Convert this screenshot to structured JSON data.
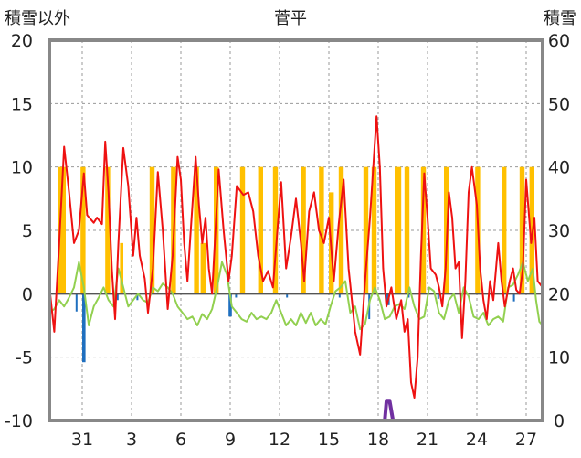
{
  "chart_data": {
    "type": "line",
    "title": "菅平",
    "ylabel_left": "積雪以外",
    "ylabel_right": "積雪",
    "ylim_left": [
      -10,
      20
    ],
    "ylim_right": [
      0,
      60
    ],
    "yticks_left": [
      20,
      15,
      10,
      5,
      0,
      -5,
      -10
    ],
    "yticks_right": [
      60,
      50,
      40,
      30,
      20,
      10,
      0
    ],
    "x_range": [
      29.0,
      59.0
    ],
    "xticks": [
      {
        "day": 31,
        "label": "31"
      },
      {
        "day": 34,
        "label": "3"
      },
      {
        "day": 37,
        "label": "6"
      },
      {
        "day": 40,
        "label": "9"
      },
      {
        "day": 43,
        "label": "12"
      },
      {
        "day": 46,
        "label": "15"
      },
      {
        "day": 49,
        "label": "18"
      },
      {
        "day": 52,
        "label": "21"
      },
      {
        "day": 55,
        "label": "24"
      },
      {
        "day": 58,
        "label": "27"
      }
    ],
    "grid": true,
    "colors": {
      "sunshine": "#ffc000",
      "precipitation": "#1f6fbf",
      "temperature": "#ee1111",
      "dewpoint": "#92d050",
      "snow_depth": "#7030a0",
      "frame": "#888888",
      "zero_line": "#555555"
    },
    "sunshine_bars": [
      [
        29.5,
        30.0,
        10
      ],
      [
        30.9,
        31.2,
        10
      ],
      [
        32.4,
        32.7,
        10
      ],
      [
        33.3,
        33.5,
        4
      ],
      [
        35.1,
        35.4,
        10
      ],
      [
        36.4,
        36.7,
        10
      ],
      [
        37.8,
        38.1,
        10
      ],
      [
        38.2,
        38.5,
        4
      ],
      [
        39.0,
        39.3,
        10
      ],
      [
        40.6,
        40.9,
        10
      ],
      [
        41.7,
        42.0,
        10
      ],
      [
        42.6,
        42.9,
        10
      ],
      [
        44.3,
        44.6,
        10
      ],
      [
        45.4,
        45.7,
        10
      ],
      [
        46.0,
        46.3,
        8
      ],
      [
        46.6,
        46.9,
        10
      ],
      [
        48.1,
        48.4,
        10
      ],
      [
        48.6,
        48.9,
        10
      ],
      [
        50.0,
        50.4,
        10
      ],
      [
        50.6,
        50.9,
        10
      ],
      [
        51.6,
        51.9,
        10
      ],
      [
        53.0,
        53.3,
        10
      ],
      [
        54.9,
        55.2,
        10
      ],
      [
        56.5,
        56.8,
        10
      ],
      [
        57.6,
        57.9,
        10
      ],
      [
        58.2,
        58.5,
        10
      ]
    ],
    "precipitation_bars": [
      [
        30.6,
        30.7,
        -1.4
      ],
      [
        31.0,
        31.2,
        -5.4
      ],
      [
        33.1,
        33.2,
        -0.5
      ],
      [
        34.3,
        34.4,
        -0.5
      ],
      [
        39.9,
        40.1,
        -1.8
      ],
      [
        40.3,
        40.4,
        -0.3
      ],
      [
        43.4,
        43.5,
        -0.3
      ],
      [
        46.6,
        46.7,
        -0.3
      ],
      [
        48.4,
        48.5,
        -2.0
      ],
      [
        49.5,
        49.7,
        -0.9
      ],
      [
        50.8,
        50.9,
        -0.3
      ],
      [
        52.6,
        52.7,
        -0.4
      ],
      [
        54.0,
        54.1,
        -0.3
      ],
      [
        57.2,
        57.3,
        -0.6
      ]
    ],
    "series": [
      {
        "key": "temperature",
        "points": [
          [
            29.0,
            0.6
          ],
          [
            29.3,
            -3.0
          ],
          [
            29.6,
            4.0
          ],
          [
            29.9,
            11.6
          ],
          [
            30.2,
            8.0
          ],
          [
            30.5,
            4.0
          ],
          [
            30.8,
            5.0
          ],
          [
            31.1,
            9.5
          ],
          [
            31.3,
            6.2
          ],
          [
            31.7,
            5.6
          ],
          [
            31.9,
            6.0
          ],
          [
            32.2,
            5.5
          ],
          [
            32.4,
            12.0
          ],
          [
            32.6,
            8.0
          ],
          [
            32.8,
            2.0
          ],
          [
            33.0,
            -2.0
          ],
          [
            33.2,
            4.0
          ],
          [
            33.5,
            11.5
          ],
          [
            33.8,
            8.5
          ],
          [
            34.1,
            3.0
          ],
          [
            34.3,
            6.0
          ],
          [
            34.5,
            3.0
          ],
          [
            34.8,
            1.2
          ],
          [
            35.0,
            -1.5
          ],
          [
            35.3,
            2.0
          ],
          [
            35.6,
            9.6
          ],
          [
            35.9,
            5.0
          ],
          [
            36.2,
            -1.2
          ],
          [
            36.5,
            3.0
          ],
          [
            36.8,
            10.8
          ],
          [
            37.0,
            9.0
          ],
          [
            37.2,
            4.0
          ],
          [
            37.4,
            1.0
          ],
          [
            37.6,
            5.0
          ],
          [
            37.9,
            10.8
          ],
          [
            38.1,
            7.0
          ],
          [
            38.3,
            4.0
          ],
          [
            38.5,
            6.0
          ],
          [
            38.7,
            2.0
          ],
          [
            38.9,
            0.0
          ],
          [
            39.3,
            9.8
          ],
          [
            39.6,
            5.0
          ],
          [
            39.9,
            1.0
          ],
          [
            40.1,
            3.0
          ],
          [
            40.4,
            8.5
          ],
          [
            40.8,
            7.8
          ],
          [
            41.1,
            8.0
          ],
          [
            41.4,
            6.5
          ],
          [
            41.7,
            3.0
          ],
          [
            42.0,
            1.0
          ],
          [
            42.3,
            1.8
          ],
          [
            42.6,
            0.5
          ],
          [
            42.9,
            5.5
          ],
          [
            43.1,
            8.8
          ],
          [
            43.4,
            2.0
          ],
          [
            43.7,
            4.5
          ],
          [
            44.0,
            7.5
          ],
          [
            44.3,
            4.0
          ],
          [
            44.5,
            1.0
          ],
          [
            44.8,
            6.5
          ],
          [
            45.1,
            8.0
          ],
          [
            45.4,
            5.0
          ],
          [
            45.7,
            4.0
          ],
          [
            46.0,
            6.0
          ],
          [
            46.3,
            1.0
          ],
          [
            46.6,
            5.5
          ],
          [
            46.9,
            9.0
          ],
          [
            47.2,
            2.0
          ],
          [
            47.4,
            -0.5
          ],
          [
            47.6,
            -3.0
          ],
          [
            47.9,
            -4.8
          ],
          [
            48.2,
            1.0
          ],
          [
            48.5,
            6.0
          ],
          [
            48.8,
            12.0
          ],
          [
            48.9,
            14.0
          ],
          [
            49.1,
            10.0
          ],
          [
            49.3,
            2.0
          ],
          [
            49.5,
            -1.0
          ],
          [
            49.8,
            0.5
          ],
          [
            50.1,
            -2.0
          ],
          [
            50.4,
            -0.5
          ],
          [
            50.6,
            -3.0
          ],
          [
            50.8,
            -2.0
          ],
          [
            51.0,
            -7.0
          ],
          [
            51.2,
            -8.2
          ],
          [
            51.4,
            -5.0
          ],
          [
            51.6,
            3.0
          ],
          [
            51.8,
            9.5
          ],
          [
            52.0,
            6.0
          ],
          [
            52.2,
            2.0
          ],
          [
            52.5,
            1.5
          ],
          [
            52.7,
            0.5
          ],
          [
            52.9,
            -1.0
          ],
          [
            53.1,
            2.0
          ],
          [
            53.3,
            8.0
          ],
          [
            53.5,
            6.0
          ],
          [
            53.7,
            2.0
          ],
          [
            53.9,
            2.5
          ],
          [
            54.1,
            -3.5
          ],
          [
            54.3,
            1.0
          ],
          [
            54.5,
            8.0
          ],
          [
            54.7,
            10.0
          ],
          [
            55.0,
            7.0
          ],
          [
            55.2,
            2.0
          ],
          [
            55.4,
            -0.5
          ],
          [
            55.6,
            -2.0
          ],
          [
            55.8,
            1.0
          ],
          [
            56.0,
            -0.5
          ],
          [
            56.3,
            4.0
          ],
          [
            56.5,
            1.0
          ],
          [
            56.7,
            -1.0
          ],
          [
            57.0,
            1.0
          ],
          [
            57.2,
            2.0
          ],
          [
            57.4,
            0.3
          ],
          [
            57.6,
            0.0
          ],
          [
            57.8,
            2.0
          ],
          [
            58.0,
            9.0
          ],
          [
            58.3,
            4.0
          ],
          [
            58.5,
            6.0
          ],
          [
            58.7,
            1.0
          ],
          [
            59.0,
            0.5
          ]
        ]
      },
      {
        "key": "dewpoint",
        "points": [
          [
            29.0,
            -1.5
          ],
          [
            29.3,
            -1.2
          ],
          [
            29.6,
            -0.5
          ],
          [
            29.9,
            -1.0
          ],
          [
            30.2,
            -0.3
          ],
          [
            30.5,
            0.5
          ],
          [
            30.8,
            2.5
          ],
          [
            31.1,
            0.5
          ],
          [
            31.4,
            -2.5
          ],
          [
            31.7,
            -1.0
          ],
          [
            32.0,
            -0.3
          ],
          [
            32.3,
            0.5
          ],
          [
            32.6,
            -0.5
          ],
          [
            32.9,
            -1.0
          ],
          [
            33.2,
            2.0
          ],
          [
            33.5,
            0.5
          ],
          [
            33.8,
            -1.0
          ],
          [
            34.1,
            -0.5
          ],
          [
            34.4,
            0.0
          ],
          [
            34.7,
            -0.5
          ],
          [
            35.0,
            -0.7
          ],
          [
            35.3,
            0.5
          ],
          [
            35.6,
            0.2
          ],
          [
            35.9,
            0.8
          ],
          [
            36.2,
            0.5
          ],
          [
            36.5,
            0.0
          ],
          [
            36.8,
            -1.0
          ],
          [
            37.1,
            -1.5
          ],
          [
            37.4,
            -2.0
          ],
          [
            37.7,
            -1.8
          ],
          [
            38.0,
            -2.5
          ],
          [
            38.3,
            -1.6
          ],
          [
            38.6,
            -2.0
          ],
          [
            38.9,
            -1.2
          ],
          [
            39.2,
            0.5
          ],
          [
            39.5,
            2.5
          ],
          [
            39.8,
            1.5
          ],
          [
            40.1,
            -1.0
          ],
          [
            40.4,
            -1.5
          ],
          [
            40.7,
            -2.0
          ],
          [
            41.0,
            -2.2
          ],
          [
            41.3,
            -1.5
          ],
          [
            41.6,
            -2.0
          ],
          [
            41.9,
            -1.8
          ],
          [
            42.2,
            -2.0
          ],
          [
            42.5,
            -1.5
          ],
          [
            42.8,
            -0.5
          ],
          [
            43.1,
            -1.5
          ],
          [
            43.4,
            -2.5
          ],
          [
            43.7,
            -2.0
          ],
          [
            44.0,
            -2.5
          ],
          [
            44.3,
            -1.5
          ],
          [
            44.6,
            -2.3
          ],
          [
            44.9,
            -1.5
          ],
          [
            45.2,
            -2.5
          ],
          [
            45.5,
            -2.0
          ],
          [
            45.8,
            -2.4
          ],
          [
            46.1,
            -1.0
          ],
          [
            46.4,
            0.2
          ],
          [
            46.7,
            0.5
          ],
          [
            47.0,
            1.0
          ],
          [
            47.3,
            -1.5
          ],
          [
            47.6,
            -1.0
          ],
          [
            47.9,
            -2.8
          ],
          [
            48.2,
            -2.4
          ],
          [
            48.5,
            -0.5
          ],
          [
            48.8,
            0.5
          ],
          [
            49.1,
            -0.5
          ],
          [
            49.4,
            -2.0
          ],
          [
            49.7,
            -1.8
          ],
          [
            50.0,
            -1.0
          ],
          [
            50.3,
            -0.8
          ],
          [
            50.6,
            -1.2
          ],
          [
            50.9,
            0.5
          ],
          [
            51.2,
            -1.0
          ],
          [
            51.5,
            -2.0
          ],
          [
            51.8,
            -1.8
          ],
          [
            52.1,
            0.5
          ],
          [
            52.4,
            0.2
          ],
          [
            52.7,
            -1.5
          ],
          [
            53.0,
            -2.0
          ],
          [
            53.3,
            -0.5
          ],
          [
            53.6,
            0.0
          ],
          [
            53.9,
            -1.5
          ],
          [
            54.2,
            0.5
          ],
          [
            54.5,
            -0.2
          ],
          [
            54.8,
            -1.8
          ],
          [
            55.1,
            -2.0
          ],
          [
            55.4,
            -1.5
          ],
          [
            55.7,
            -2.5
          ],
          [
            56.0,
            -2.0
          ],
          [
            56.3,
            -1.8
          ],
          [
            56.6,
            -2.2
          ],
          [
            56.9,
            0.5
          ],
          [
            57.2,
            0.7
          ],
          [
            57.5,
            1.5
          ],
          [
            57.8,
            2.5
          ],
          [
            58.1,
            1.0
          ],
          [
            58.4,
            2.0
          ],
          [
            58.6,
            -0.5
          ],
          [
            58.8,
            -2.2
          ],
          [
            59.0,
            -2.5
          ]
        ]
      },
      {
        "key": "snow_depth",
        "points": [
          [
            29.0,
            0
          ],
          [
            49.4,
            0
          ],
          [
            49.5,
            3
          ],
          [
            49.7,
            3
          ],
          [
            49.8,
            1.5
          ],
          [
            49.9,
            0
          ],
          [
            59.0,
            0
          ]
        ]
      }
    ]
  }
}
